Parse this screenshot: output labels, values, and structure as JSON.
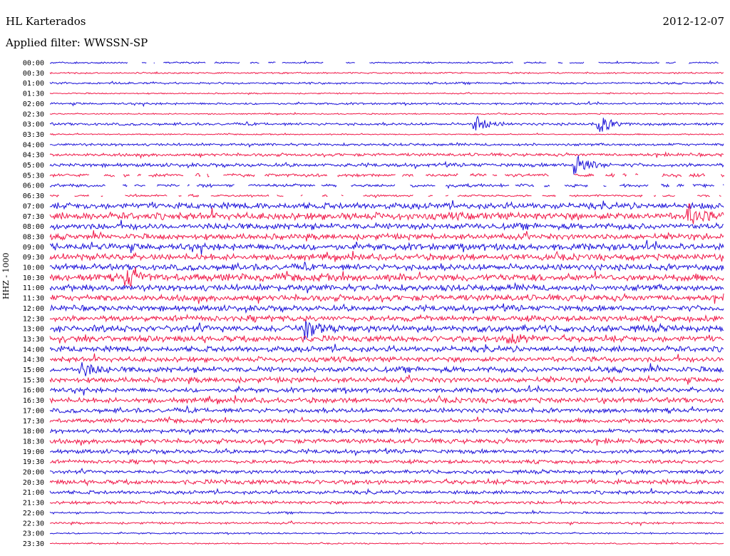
{
  "header": {
    "station": "HL Karterados",
    "date": "2012-12-07",
    "filter": "Applied filter: WWSSN-SP",
    "channel_label": "HHZ - 1000"
  },
  "colors": {
    "trace_a": "#1a10d8",
    "trace_b": "#f01848"
  },
  "chart_data": {
    "type": "line",
    "title": "HL Karterados",
    "subtitle": "Applied filter: WWSSN-SP",
    "ylabel": "HHZ - 1000",
    "grid": false,
    "legend": "none",
    "row_labels": [
      "00:00",
      "00:30",
      "01:00",
      "01:30",
      "02:00",
      "02:30",
      "03:00",
      "03:30",
      "04:00",
      "04:30",
      "05:00",
      "05:30",
      "06:00",
      "06:30",
      "07:00",
      "07:30",
      "08:00",
      "08:30",
      "09:00",
      "09:30",
      "10:00",
      "10:30",
      "11:00",
      "11:30",
      "12:00",
      "12:30",
      "13:00",
      "13:30",
      "14:00",
      "14:30",
      "15:00",
      "15:30",
      "16:00",
      "16:30",
      "17:00",
      "17:30",
      "18:00",
      "18:30",
      "19:00",
      "19:30",
      "20:00",
      "20:30",
      "21:00",
      "21:30",
      "22:00",
      "22:30",
      "23:00",
      "23:30"
    ],
    "row_minutes": 30,
    "row_amplitude": [
      0.15,
      0.15,
      0.2,
      0.12,
      0.2,
      0.12,
      0.25,
      0.12,
      0.25,
      0.3,
      0.35,
      0.3,
      0.3,
      0.2,
      0.6,
      0.7,
      0.6,
      0.55,
      0.65,
      0.6,
      0.6,
      0.7,
      0.6,
      0.6,
      0.55,
      0.55,
      0.65,
      0.6,
      0.55,
      0.5,
      0.55,
      0.5,
      0.45,
      0.5,
      0.45,
      0.4,
      0.4,
      0.45,
      0.4,
      0.35,
      0.35,
      0.45,
      0.35,
      0.3,
      0.2,
      0.2,
      0.15,
      0.12
    ],
    "gapped_rows": [
      "00:00",
      "05:30",
      "06:00",
      "06:30"
    ],
    "events": [
      {
        "row": "03:00",
        "minute": 19,
        "amplitude": 1.6
      },
      {
        "row": "03:00",
        "minute": 24.5,
        "amplitude": 1.8
      },
      {
        "row": "05:00",
        "minute": 23.5,
        "amplitude": 2.2
      },
      {
        "row": "07:30",
        "minute": 28.5,
        "amplitude": 2.0
      },
      {
        "row": "10:30",
        "minute": 3.5,
        "amplitude": 1.8
      },
      {
        "row": "13:00",
        "minute": 11.5,
        "amplitude": 1.7
      },
      {
        "row": "13:30",
        "minute": 20.5,
        "amplitude": 1.5
      },
      {
        "row": "15:00",
        "minute": 1.5,
        "amplitude": 1.3
      }
    ]
  }
}
